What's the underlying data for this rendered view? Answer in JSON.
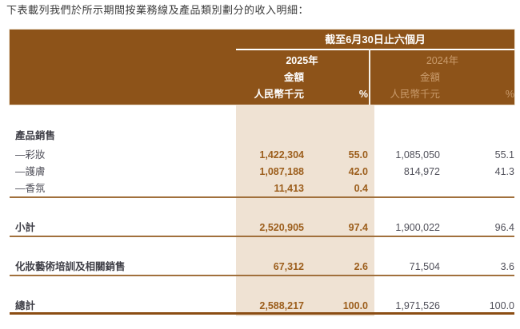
{
  "intro": "下表載列我們於所示期間按業務線及產品類別劃分的收入明細：",
  "table": {
    "period_header": "截至6月30日止六個月",
    "columns": {
      "y2025": {
        "year": "2025年",
        "amount": "金額",
        "unit": "人民幣千元",
        "pct": "%"
      },
      "y2024": {
        "year": "2024年",
        "amount": "金額",
        "unit": "人民幣千元",
        "pct": "%"
      }
    },
    "rows": [
      {
        "label": "產品銷售",
        "amount_2025": "",
        "pct_2025": "",
        "amount_2024": "",
        "pct_2024": ""
      },
      {
        "label": "—彩妝",
        "amount_2025": "1,422,304",
        "pct_2025": "55.0",
        "amount_2024": "1,085,050",
        "pct_2024": "55.1"
      },
      {
        "label": "—護膚",
        "amount_2025": "1,087,188",
        "pct_2025": "42.0",
        "amount_2024": "814,972",
        "pct_2024": "41.3"
      },
      {
        "label": "—香氛",
        "amount_2025": "11,413",
        "pct_2025": "0.4",
        "amount_2024": "",
        "pct_2024": ""
      },
      {
        "label": "小計",
        "amount_2025": "2,520,905",
        "pct_2025": "97.4",
        "amount_2024": "1,900,022",
        "pct_2024": "96.4"
      },
      {
        "label": "化妝藝術培訓及相關銷售",
        "amount_2025": "67,312",
        "pct_2025": "2.6",
        "amount_2024": "71,504",
        "pct_2024": "3.6"
      },
      {
        "label": "總計",
        "amount_2025": "2,588,217",
        "pct_2025": "100.0",
        "amount_2024": "1,971,526",
        "pct_2024": "100.0"
      }
    ],
    "colors": {
      "header_bg": "#8d5319",
      "highlight_band": "#efe2d3",
      "value_2025_text": "#9c5e1c",
      "value_2024_text": "#50505a",
      "year_2024_header_text": "#c99b6c",
      "rule": "#a1703c",
      "total_rule": "#8b4d13"
    }
  }
}
